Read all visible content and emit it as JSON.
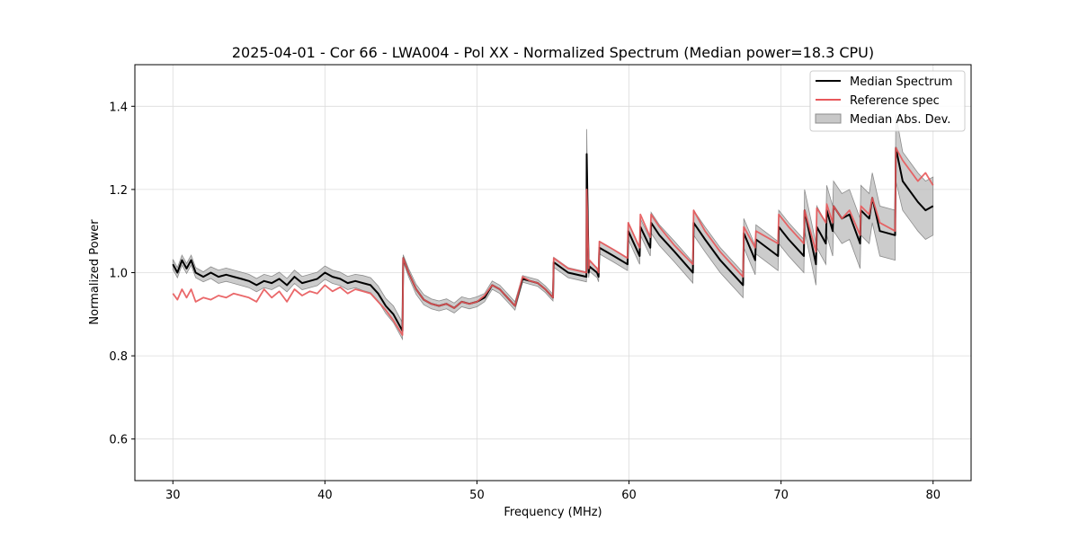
{
  "chart_data": {
    "type": "line",
    "title": "2025-04-01 - Cor 66 - LWA004 - Pol XX - Normalized Spectrum (Median power=18.3 CPU)",
    "xlabel": "Frequency (MHz)",
    "ylabel": "Normalized Power",
    "xlim": [
      27.5,
      82.5
    ],
    "ylim": [
      0.5,
      1.5
    ],
    "xticks": [
      30,
      40,
      50,
      60,
      70,
      80
    ],
    "yticks": [
      0.6,
      0.8,
      1.0,
      1.2,
      1.4
    ],
    "ytick_labels": [
      "0.6",
      "0.8",
      "1.0",
      "1.2",
      "1.4"
    ],
    "grid": true,
    "legend_position": "top-right",
    "legend": [
      "Median Spectrum",
      "Reference spec",
      "Median Abs. Dev."
    ],
    "colors": {
      "median": "#000000",
      "reference": "#e8585a",
      "band_fill": "#b0b0b0",
      "band_edge": "#8c8c8c",
      "grid": "#dcdcdc"
    },
    "series": [
      {
        "name": "Median Spectrum",
        "x": [
          30.0,
          30.3,
          30.6,
          30.9,
          31.2,
          31.5,
          32.0,
          32.5,
          33.0,
          33.5,
          34.0,
          34.5,
          35.0,
          35.5,
          36.0,
          36.5,
          37.0,
          37.5,
          38.0,
          38.5,
          39.0,
          39.5,
          40.0,
          40.5,
          41.0,
          41.5,
          42.0,
          42.5,
          43.0,
          43.5,
          44.0,
          44.5,
          45.1,
          45.15,
          45.5,
          46.0,
          46.5,
          47.0,
          47.5,
          48.0,
          48.5,
          49.0,
          49.5,
          50.0,
          50.5,
          51.0,
          51.5,
          52.0,
          52.5,
          53.0,
          53.5,
          54.0,
          54.5,
          55.0,
          55.05,
          56.0,
          57.2,
          57.22,
          57.35,
          57.4,
          57.9,
          58.0,
          58.05,
          59.0,
          59.9,
          59.95,
          60.7,
          60.75,
          61.4,
          61.45,
          62.0,
          63.0,
          64.2,
          64.25,
          65.0,
          66.0,
          66.5,
          67.0,
          67.5,
          67.55,
          68.3,
          68.35,
          69.8,
          69.85,
          70.5,
          71.0,
          71.5,
          71.55,
          72.3,
          72.35,
          72.95,
          73.0,
          73.4,
          73.45,
          74.0,
          74.5,
          75.2,
          75.25,
          75.8,
          76.0,
          76.5,
          77.5,
          77.55,
          78.0,
          79.0,
          79.5,
          80.0
        ],
        "values": [
          1.02,
          1.0,
          1.03,
          1.01,
          1.03,
          1.0,
          0.99,
          1.0,
          0.99,
          0.995,
          0.99,
          0.985,
          0.98,
          0.97,
          0.98,
          0.975,
          0.985,
          0.97,
          0.99,
          0.975,
          0.98,
          0.985,
          1.0,
          0.99,
          0.985,
          0.975,
          0.98,
          0.975,
          0.97,
          0.95,
          0.92,
          0.9,
          0.86,
          1.035,
          1.0,
          0.96,
          0.935,
          0.925,
          0.92,
          0.925,
          0.915,
          0.93,
          0.925,
          0.93,
          0.94,
          0.97,
          0.96,
          0.94,
          0.92,
          0.985,
          0.98,
          0.975,
          0.96,
          0.94,
          1.025,
          1.0,
          0.99,
          1.285,
          1.0,
          1.015,
          1.0,
          0.99,
          1.06,
          1.04,
          1.02,
          1.1,
          1.04,
          1.11,
          1.06,
          1.12,
          1.09,
          1.05,
          1.0,
          1.12,
          1.08,
          1.03,
          1.01,
          0.99,
          0.97,
          1.095,
          1.03,
          1.08,
          1.04,
          1.11,
          1.08,
          1.06,
          1.04,
          1.15,
          1.02,
          1.11,
          1.07,
          1.15,
          1.1,
          1.16,
          1.13,
          1.14,
          1.07,
          1.15,
          1.13,
          1.18,
          1.1,
          1.09,
          1.3,
          1.22,
          1.17,
          1.15,
          1.16
        ]
      },
      {
        "name": "Reference spec",
        "x": [
          30.0,
          30.3,
          30.6,
          30.9,
          31.2,
          31.5,
          32.0,
          32.5,
          33.0,
          33.5,
          34.0,
          34.5,
          35.0,
          35.5,
          36.0,
          36.5,
          37.0,
          37.5,
          38.0,
          38.5,
          39.0,
          39.5,
          40.0,
          40.5,
          41.0,
          41.5,
          42.0,
          42.5,
          43.0,
          43.5,
          44.0,
          44.5,
          45.1,
          45.15,
          45.5,
          46.0,
          46.5,
          47.0,
          47.5,
          48.0,
          48.5,
          49.0,
          49.5,
          50.0,
          50.5,
          51.0,
          51.5,
          52.0,
          52.5,
          53.0,
          53.5,
          54.0,
          54.5,
          55.0,
          55.05,
          56.0,
          57.2,
          57.22,
          57.35,
          57.4,
          57.9,
          58.0,
          58.05,
          59.0,
          59.9,
          59.95,
          60.7,
          60.75,
          61.4,
          61.45,
          62.0,
          63.0,
          64.2,
          64.25,
          65.0,
          66.0,
          66.5,
          67.0,
          67.5,
          67.55,
          68.3,
          68.35,
          69.8,
          69.85,
          70.5,
          71.0,
          71.5,
          71.55,
          72.3,
          72.35,
          72.95,
          73.0,
          73.4,
          73.45,
          74.0,
          74.5,
          75.2,
          75.25,
          75.8,
          76.0,
          76.5,
          77.5,
          77.55,
          78.0,
          79.0,
          79.5,
          80.0
        ],
        "values": [
          0.95,
          0.935,
          0.96,
          0.94,
          0.96,
          0.93,
          0.94,
          0.935,
          0.945,
          0.94,
          0.95,
          0.945,
          0.94,
          0.93,
          0.96,
          0.94,
          0.955,
          0.93,
          0.96,
          0.945,
          0.955,
          0.95,
          0.97,
          0.955,
          0.965,
          0.95,
          0.96,
          0.955,
          0.95,
          0.93,
          0.91,
          0.885,
          0.85,
          1.035,
          1.0,
          0.96,
          0.935,
          0.925,
          0.92,
          0.925,
          0.915,
          0.93,
          0.925,
          0.93,
          0.945,
          0.97,
          0.96,
          0.94,
          0.92,
          0.99,
          0.98,
          0.975,
          0.96,
          0.94,
          1.035,
          1.01,
          1.0,
          1.2,
          1.01,
          1.03,
          1.01,
          1.0,
          1.075,
          1.055,
          1.035,
          1.12,
          1.06,
          1.14,
          1.085,
          1.14,
          1.11,
          1.065,
          1.02,
          1.15,
          1.1,
          1.05,
          1.03,
          1.01,
          0.99,
          1.11,
          1.06,
          1.1,
          1.07,
          1.14,
          1.11,
          1.09,
          1.07,
          1.15,
          1.05,
          1.155,
          1.12,
          1.165,
          1.12,
          1.16,
          1.13,
          1.15,
          1.09,
          1.16,
          1.14,
          1.18,
          1.12,
          1.1,
          1.3,
          1.27,
          1.22,
          1.24,
          1.21
        ]
      },
      {
        "name": "Median Abs. Dev.",
        "x": [
          30.0,
          30.3,
          30.6,
          30.9,
          31.2,
          31.5,
          32.0,
          32.5,
          33.0,
          33.5,
          34.0,
          34.5,
          35.0,
          35.5,
          36.0,
          36.5,
          37.0,
          37.5,
          38.0,
          38.5,
          39.0,
          39.5,
          40.0,
          40.5,
          41.0,
          41.5,
          42.0,
          42.5,
          43.0,
          43.5,
          44.0,
          44.5,
          45.1,
          45.15,
          45.5,
          46.0,
          46.5,
          47.0,
          47.5,
          48.0,
          48.5,
          49.0,
          49.5,
          50.0,
          50.5,
          51.0,
          51.5,
          52.0,
          52.5,
          53.0,
          53.5,
          54.0,
          54.5,
          55.0,
          55.05,
          56.0,
          57.2,
          57.22,
          57.35,
          57.4,
          57.9,
          58.0,
          58.05,
          59.0,
          59.9,
          59.95,
          60.7,
          60.75,
          61.4,
          61.45,
          62.0,
          63.0,
          64.2,
          64.25,
          65.0,
          66.0,
          66.5,
          67.0,
          67.5,
          67.55,
          68.3,
          68.35,
          69.8,
          69.85,
          70.5,
          71.0,
          71.5,
          71.55,
          72.3,
          72.35,
          72.95,
          73.0,
          73.4,
          73.45,
          74.0,
          74.5,
          75.2,
          75.25,
          75.8,
          76.0,
          76.5,
          77.5,
          77.55,
          78.0,
          79.0,
          79.5,
          80.0
        ],
        "deviation": [
          0.012,
          0.012,
          0.012,
          0.012,
          0.012,
          0.012,
          0.012,
          0.014,
          0.016,
          0.016,
          0.016,
          0.016,
          0.016,
          0.016,
          0.016,
          0.016,
          0.016,
          0.016,
          0.016,
          0.016,
          0.016,
          0.016,
          0.016,
          0.016,
          0.016,
          0.016,
          0.016,
          0.018,
          0.018,
          0.018,
          0.018,
          0.02,
          0.02,
          0.008,
          0.01,
          0.012,
          0.012,
          0.012,
          0.012,
          0.012,
          0.012,
          0.012,
          0.012,
          0.012,
          0.01,
          0.01,
          0.01,
          0.01,
          0.01,
          0.008,
          0.008,
          0.008,
          0.008,
          0.008,
          0.012,
          0.012,
          0.012,
          0.06,
          0.012,
          0.012,
          0.012,
          0.012,
          0.015,
          0.015,
          0.015,
          0.02,
          0.02,
          0.02,
          0.02,
          0.025,
          0.025,
          0.025,
          0.025,
          0.03,
          0.03,
          0.03,
          0.03,
          0.03,
          0.03,
          0.035,
          0.035,
          0.035,
          0.035,
          0.04,
          0.04,
          0.04,
          0.04,
          0.05,
          0.05,
          0.05,
          0.05,
          0.06,
          0.06,
          0.06,
          0.06,
          0.06,
          0.06,
          0.06,
          0.06,
          0.06,
          0.06,
          0.06,
          0.08,
          0.07,
          0.07,
          0.07,
          0.07
        ]
      }
    ]
  }
}
